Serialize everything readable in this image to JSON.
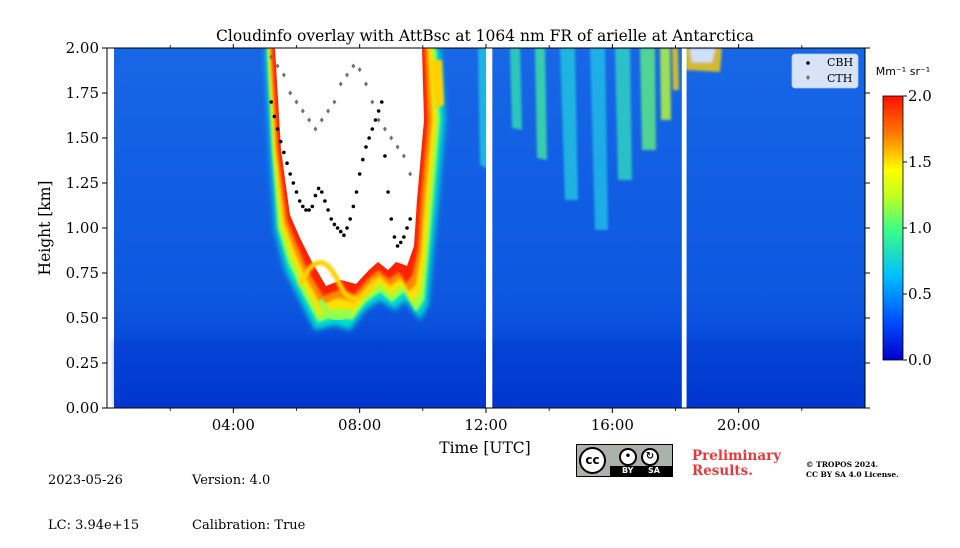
{
  "chart_data": {
    "type": "heatmap",
    "title": "Cloudinfo overlay with AttBsc at 1064 nm FR of arielle at Antarctica",
    "xlabel": "Time [UTC]",
    "ylabel": "Height [km]",
    "xlim": [
      0,
      24
    ],
    "ylim": [
      0,
      2.0
    ],
    "x_ticks": [
      "04:00",
      "08:00",
      "12:00",
      "16:00",
      "20:00"
    ],
    "x_tick_values": [
      4,
      8,
      12,
      16,
      20
    ],
    "y_ticks": [
      "0.00",
      "0.25",
      "0.50",
      "0.75",
      "1.00",
      "1.25",
      "1.50",
      "1.75",
      "2.00"
    ],
    "y_tick_values": [
      0,
      0.25,
      0.5,
      0.75,
      1.0,
      1.25,
      1.5,
      1.75,
      2.0
    ],
    "colorbar": {
      "label": "Mm⁻¹ sr⁻¹",
      "range": [
        0,
        2.0
      ],
      "ticks": [
        "0.0",
        "0.5",
        "1.0",
        "1.5",
        "2.0"
      ],
      "tick_values": [
        0,
        0.5,
        1.0,
        1.5,
        2.0
      ],
      "colormap": "jet"
    },
    "legend": {
      "placement": "top-right",
      "entries": [
        "CBH",
        "CTH"
      ]
    },
    "data_gaps_utc": [
      [
        12.0,
        12.2
      ],
      [
        18.2,
        18.35
      ]
    ],
    "series": [
      {
        "name": "CBH",
        "color": "#000000",
        "x": [
          5.2,
          5.3,
          5.4,
          5.5,
          5.6,
          5.7,
          5.8,
          5.9,
          6.0,
          6.1,
          6.2,
          6.3,
          6.4,
          6.5,
          6.6,
          6.7,
          6.8,
          6.9,
          7.0,
          7.1,
          7.2,
          7.3,
          7.4,
          7.5,
          7.6,
          7.7,
          7.8,
          7.9,
          8.0,
          8.1,
          8.2,
          8.3,
          8.4,
          8.5,
          8.6,
          8.7,
          8.8,
          8.9,
          9.0,
          9.1,
          9.2,
          9.3,
          9.4,
          9.5,
          9.6
        ],
        "y": [
          1.7,
          1.62,
          1.55,
          1.48,
          1.42,
          1.36,
          1.3,
          1.25,
          1.2,
          1.15,
          1.12,
          1.1,
          1.1,
          1.12,
          1.18,
          1.22,
          1.2,
          1.15,
          1.1,
          1.05,
          1.02,
          1.0,
          0.98,
          0.96,
          1.0,
          1.05,
          1.12,
          1.2,
          1.3,
          1.38,
          1.45,
          1.5,
          1.55,
          1.6,
          1.65,
          1.7,
          1.4,
          1.2,
          1.05,
          0.95,
          0.9,
          0.92,
          0.95,
          1.0,
          1.05
        ]
      },
      {
        "name": "CTH",
        "color": "#707070",
        "x": [
          5.2,
          5.4,
          5.6,
          5.8,
          6.0,
          6.2,
          6.4,
          6.6,
          6.8,
          7.0,
          7.2,
          7.4,
          7.6,
          7.8,
          8.0,
          8.2,
          8.4,
          8.6,
          8.8,
          9.0,
          9.2,
          9.4,
          9.6
        ],
        "y": [
          1.95,
          1.9,
          1.85,
          1.75,
          1.7,
          1.65,
          1.6,
          1.55,
          1.6,
          1.65,
          1.7,
          1.8,
          1.85,
          1.9,
          1.88,
          1.8,
          1.7,
          1.6,
          1.55,
          1.5,
          1.45,
          1.4,
          1.3
        ]
      }
    ]
  },
  "footer": {
    "date": "2023-05-26",
    "lc": "LC: 3.94e+15",
    "version": "Version: 4.0",
    "calibration": "Calibration: True",
    "license_badge": {
      "cc": "cc",
      "by": "BY",
      "sa": "SA"
    },
    "preliminary": "Preliminary\nResults.",
    "copyright": "© TROPOS 2024.\nCC BY SA 4.0 License."
  }
}
